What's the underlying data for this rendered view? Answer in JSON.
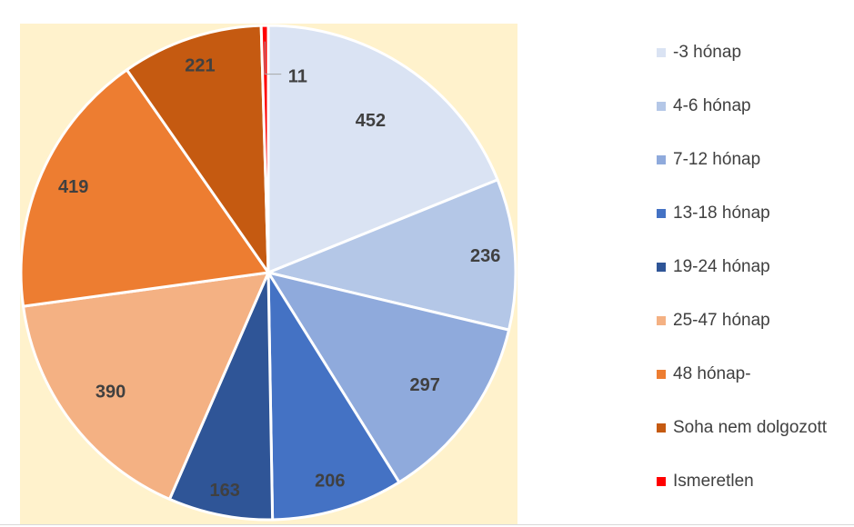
{
  "chart_data": {
    "type": "pie",
    "categories": [
      "-3 hónap",
      "4-6 hónap",
      "7-12 hónap",
      "13-18 hónap",
      "19-24 hónap",
      "25-47 hónap",
      "48 hónap-",
      "Soha nem dolgozott",
      "Ismeretlen"
    ],
    "values": [
      452,
      236,
      297,
      206,
      163,
      390,
      419,
      221,
      11
    ],
    "colors": [
      "#dae3f3",
      "#b4c7e7",
      "#8faadc",
      "#4472c4",
      "#2f5597",
      "#f4b183",
      "#ed7d31",
      "#c55a11",
      "#ff0000"
    ],
    "label_text_colors": [
      "#404040",
      "#404040",
      "#404040",
      "#404040",
      "#ffffff",
      "#404040",
      "#404040",
      "#ffffff",
      "#404040"
    ],
    "start_angle_deg": 0,
    "direction": "clockwise",
    "legend_position": "right",
    "plot_background": "#fff2cc",
    "slice_border_color": "#ffffff"
  }
}
